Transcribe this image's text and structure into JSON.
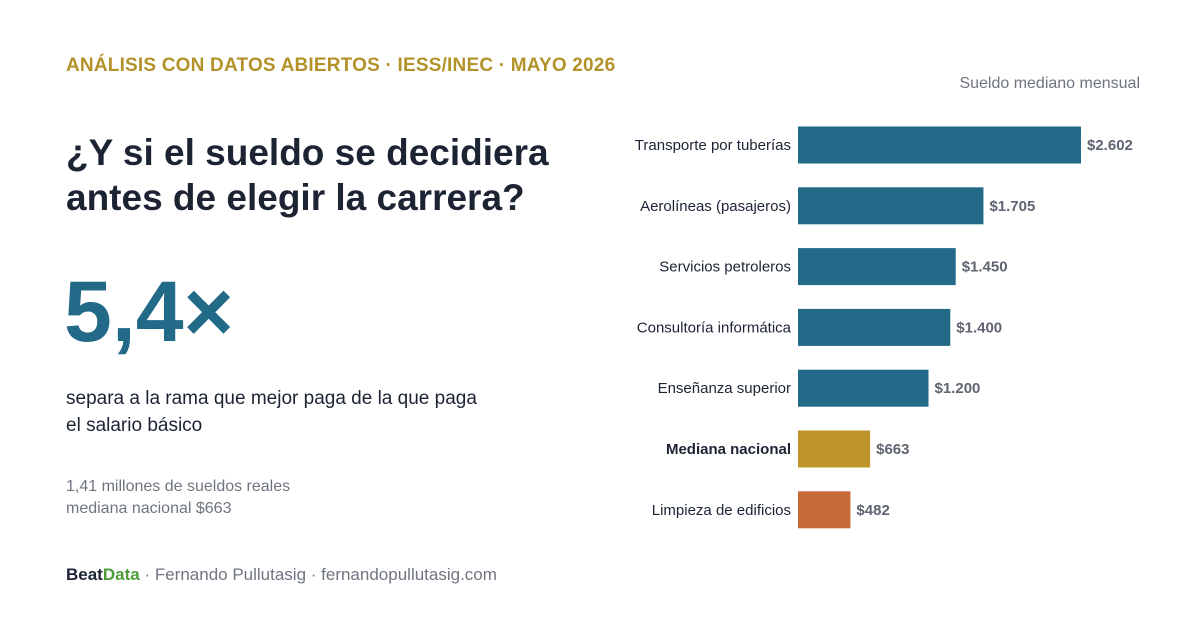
{
  "eyebrow": "ANÁLISIS CON DATOS ABIERTOS · IESS/INEC · MAYO 2026",
  "headline": "¿Y si el sueldo se decidiera antes de elegir la carrera?",
  "big_number": "5,4×",
  "description": "separa a la rama que mejor paga de la que paga el salario básico",
  "note_line1": "1,41 millones de sueldos reales",
  "note_line2": "mediana nacional $663",
  "footer": {
    "brand_a": "Beat",
    "brand_b": "Data",
    "rest": " · Fernando Pullutasig · fernandopullutasig.com"
  },
  "colors": {
    "navy": "#1c2434",
    "gold": "#b3922a",
    "bar_blue": "#236a88",
    "bar_gold": "#bd952b",
    "bar_orange": "#c8693a",
    "value_gray": "#5f6570"
  },
  "chart_data": {
    "type": "bar",
    "orientation": "horizontal",
    "title": "Sueldo mediano mensual",
    "categories": [
      "Transporte por tuberías",
      "Aerolíneas (pasajeros)",
      "Servicios petroleros",
      "Consultoría informática",
      "Enseñanza superior",
      "Mediana nacional",
      "Limpieza de edificios"
    ],
    "values": [
      2602,
      1705,
      1450,
      1400,
      1200,
      663,
      482
    ],
    "value_labels": [
      "$2.602",
      "$1.705",
      "$1.450",
      "$1.400",
      "$1.200",
      "$663",
      "$482"
    ],
    "bar_colors": [
      "#236a88",
      "#236a88",
      "#236a88",
      "#236a88",
      "#236a88",
      "#bd952b",
      "#c8693a"
    ],
    "bold_categories": [
      "Mediana nacional"
    ],
    "xlim": [
      0,
      2602
    ],
    "grid": false,
    "legend": "none"
  }
}
